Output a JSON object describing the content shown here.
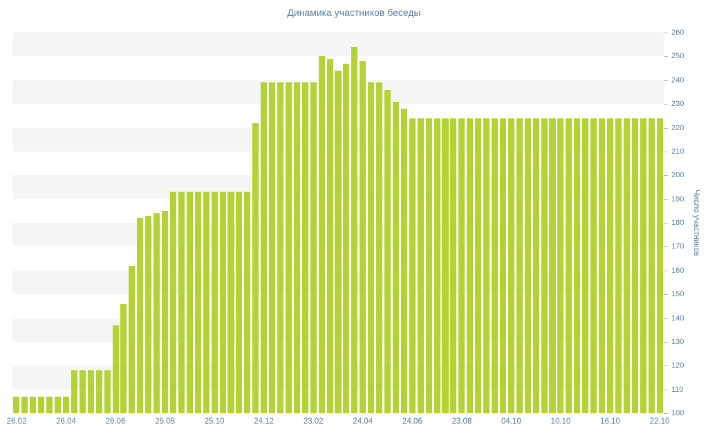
{
  "title": "Динамика участников беседы",
  "colors": {
    "bar": "#b2d333",
    "stripe": "#f5f5f5",
    "background": "#ffffff",
    "label": "#5d7ea4",
    "tick": "#b5b5b5"
  },
  "chart_data": {
    "type": "bar",
    "title": "Динамика участников беседы",
    "xlabel": "",
    "ylabel": "Число участников",
    "ylim": [
      100,
      260
    ],
    "y_step": 10,
    "grid": "alternating horizontal bands",
    "legend": "none",
    "y_tick_labels": [
      "100",
      "110",
      "120",
      "130",
      "140",
      "150",
      "160",
      "170",
      "180",
      "190",
      "200",
      "210",
      "220",
      "230",
      "240",
      "250",
      "260"
    ],
    "x_tick_labels": [
      "26.02",
      "26.04",
      "26.06",
      "25.08",
      "25.10",
      "24.12",
      "23.02",
      "24.04",
      "24.06",
      "23.08",
      "04.10",
      "10.10",
      "16.10",
      "22.10"
    ],
    "x_tick_indices": [
      0,
      6,
      12,
      18,
      24,
      30,
      36,
      42,
      48,
      54,
      60,
      66,
      72,
      78
    ],
    "values": [
      107,
      107,
      107,
      107,
      107,
      107,
      107,
      118,
      118,
      118,
      118,
      118,
      137,
      146,
      162,
      182,
      183,
      184,
      185,
      193,
      193,
      193,
      193,
      193,
      193,
      193,
      193,
      193,
      193,
      222,
      239,
      239,
      239,
      239,
      239,
      239,
      239,
      250,
      249,
      244,
      247,
      254,
      248,
      239,
      239,
      236,
      231,
      228,
      224,
      224,
      224,
      224,
      224,
      224,
      224,
      224,
      224,
      224,
      224,
      224,
      224,
      224,
      224,
      224,
      224,
      224,
      224,
      224,
      224,
      224,
      224,
      224,
      224,
      224,
      224,
      224,
      224,
      224,
      224
    ]
  }
}
